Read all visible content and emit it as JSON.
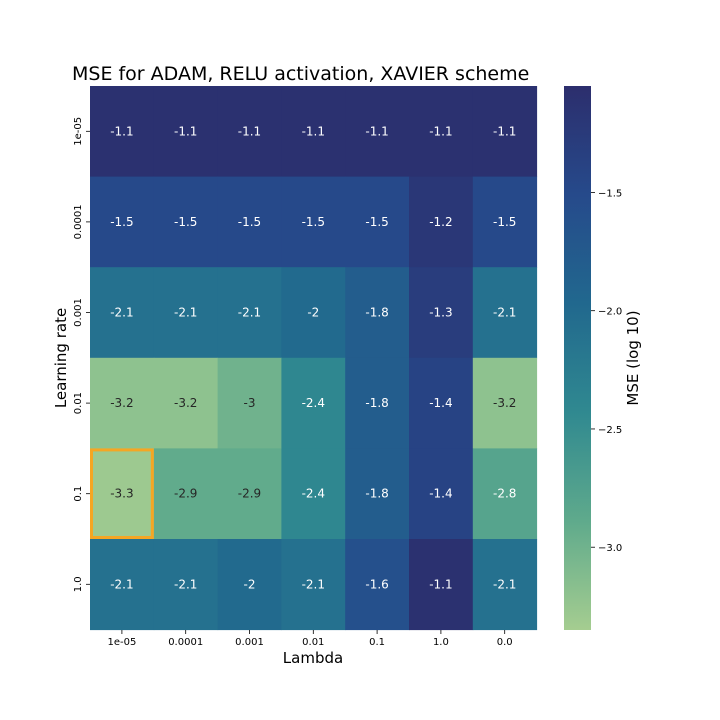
{
  "chart_data": {
    "type": "heatmap",
    "title": "MSE for ADAM, RELU activation, XAVIER scheme",
    "xlabel": "Lambda",
    "ylabel": "Learning rate",
    "x_categories": [
      "1e-05",
      "0.0001",
      "0.001",
      "0.01",
      "0.1",
      "1.0",
      "0.0"
    ],
    "y_categories": [
      "1e-05",
      "0.0001",
      "0.001",
      "0.01",
      "0.1",
      "1.0"
    ],
    "values": [
      [
        -1.1,
        -1.1,
        -1.1,
        -1.1,
        -1.1,
        -1.1,
        -1.1
      ],
      [
        -1.5,
        -1.5,
        -1.5,
        -1.5,
        -1.5,
        -1.2,
        -1.5
      ],
      [
        -2.1,
        -2.1,
        -2.1,
        -2,
        -1.8,
        -1.3,
        -2.1
      ],
      [
        -3.2,
        -3.2,
        -3,
        -2.4,
        -1.8,
        -1.4,
        -3.2
      ],
      [
        -3.3,
        -2.9,
        -2.9,
        -2.4,
        -1.8,
        -1.4,
        -2.8
      ],
      [
        -2.1,
        -2.1,
        -2,
        -2.1,
        -1.6,
        -1.1,
        -2.1
      ]
    ],
    "highlight_cell": {
      "row": 4,
      "col": 0,
      "color": "#f5a623"
    },
    "colorbar": {
      "label": "MSE (log 10)",
      "range": [
        -3.35,
        -1.05
      ],
      "ticks": [
        -1.5,
        -2.0,
        -2.5,
        -3.0
      ],
      "tick_labels": [
        "−1.5",
        "−2.0",
        "−2.5",
        "−3.0"
      ],
      "colormap": "crest"
    },
    "grid": false
  }
}
